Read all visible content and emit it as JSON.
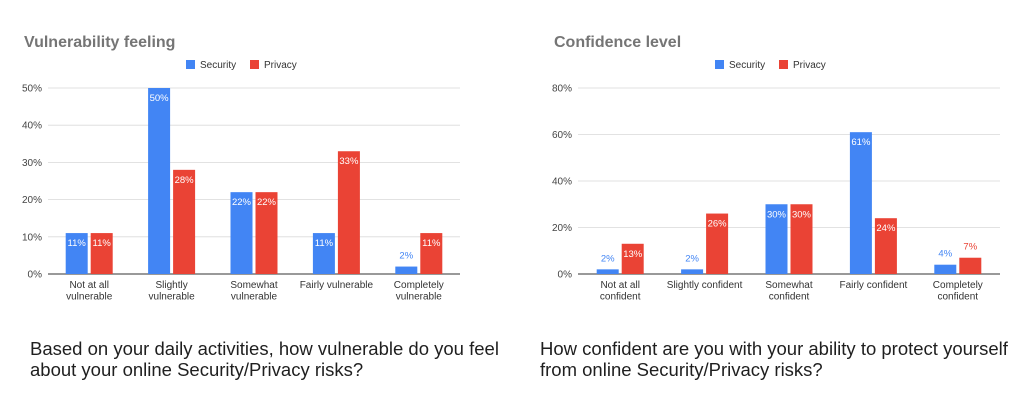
{
  "colors": {
    "security": "#4285f4",
    "privacy": "#ea4335",
    "grid": "#d9d9d9",
    "axis": "#333333"
  },
  "chart_data": [
    {
      "type": "bar",
      "title": "Vulnerability feeling",
      "categories": [
        [
          "Not at all",
          "vulnerable"
        ],
        [
          "Slightly",
          "vulnerable"
        ],
        [
          "Somewhat",
          "vulnerable"
        ],
        [
          "Fairly vulnerable"
        ],
        [
          "Completely",
          "vulnerable"
        ]
      ],
      "series": [
        {
          "name": "Security",
          "color": "#4285f4",
          "values": [
            11,
            50,
            22,
            11,
            2
          ],
          "labels": [
            "11%",
            "50%",
            "22%",
            "11%",
            "2%"
          ]
        },
        {
          "name": "Privacy",
          "color": "#ea4335",
          "values": [
            11,
            28,
            22,
            33,
            11
          ],
          "labels": [
            "11%",
            "28%",
            "22%",
            "33%",
            "11%"
          ]
        }
      ],
      "ylim": [
        0,
        50
      ],
      "yticks": [
        0,
        10,
        20,
        30,
        40,
        50
      ],
      "ytick_labels": [
        "0%",
        "10%",
        "20%",
        "30%",
        "40%",
        "50%"
      ],
      "grid": true,
      "legend": "top-center"
    },
    {
      "type": "bar",
      "title": "Confidence level",
      "categories": [
        [
          "Not at all",
          "confident"
        ],
        [
          "Slightly confident"
        ],
        [
          "Somewhat",
          "confident"
        ],
        [
          "Fairly confident"
        ],
        [
          "Completely",
          "confident"
        ]
      ],
      "series": [
        {
          "name": "Security",
          "color": "#4285f4",
          "values": [
            2,
            2,
            30,
            61,
            4
          ],
          "labels": [
            "2%",
            "2%",
            "30%",
            "61%",
            "4%"
          ]
        },
        {
          "name": "Privacy",
          "color": "#ea4335",
          "values": [
            13,
            26,
            30,
            24,
            7
          ],
          "labels": [
            "13%",
            "26%",
            "30%",
            "24%",
            "7%"
          ]
        }
      ],
      "ylim": [
        0,
        80
      ],
      "yticks": [
        0,
        20,
        40,
        60,
        80
      ],
      "ytick_labels": [
        "0%",
        "20%",
        "40%",
        "60%",
        "80%"
      ],
      "grid": true,
      "legend": "top-center"
    }
  ],
  "captions": [
    "Based on your daily activities, how vulnerable do you feel about your online Security/Privacy risks?",
    "How confident are you with your ability to protect yourself from online Security/Privacy risks?"
  ]
}
